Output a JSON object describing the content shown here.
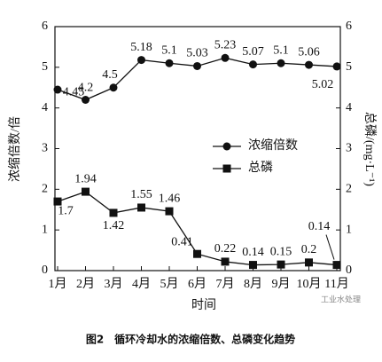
{
  "chart_data": {
    "type": "line",
    "caption": "图2　循环冷却水的浓缩倍数、总磷变化趋势",
    "watermark": "工业水处理",
    "xlabel": "时间",
    "ylabel": "浓缩倍数/倍",
    "y2label": "总磷/(mg·L⁻¹)",
    "categories": [
      "1月",
      "2月",
      "3月",
      "4月",
      "5月",
      "6月",
      "7月",
      "8月",
      "9月",
      "10月",
      "11月"
    ],
    "series": [
      {
        "name": "浓缩倍数",
        "color": "#111111",
        "marker": "circle",
        "axis": "y",
        "values": [
          4.45,
          4.2,
          4.5,
          5.18,
          5.1,
          5.03,
          5.23,
          5.07,
          5.1,
          5.06,
          5.02
        ]
      },
      {
        "name": "总磷",
        "color": "#111111",
        "marker": "square",
        "axis": "y2",
        "values": [
          1.7,
          1.94,
          1.42,
          1.55,
          1.46,
          0.41,
          0.22,
          0.14,
          0.15,
          0.2,
          0.14
        ]
      }
    ],
    "ylim": [
      0,
      6
    ],
    "yticks": [
      0,
      1,
      2,
      3,
      4,
      5,
      6
    ],
    "y2lim": [
      0,
      6
    ],
    "y2ticks": [
      0,
      1,
      2,
      3,
      4,
      5,
      6
    ]
  }
}
